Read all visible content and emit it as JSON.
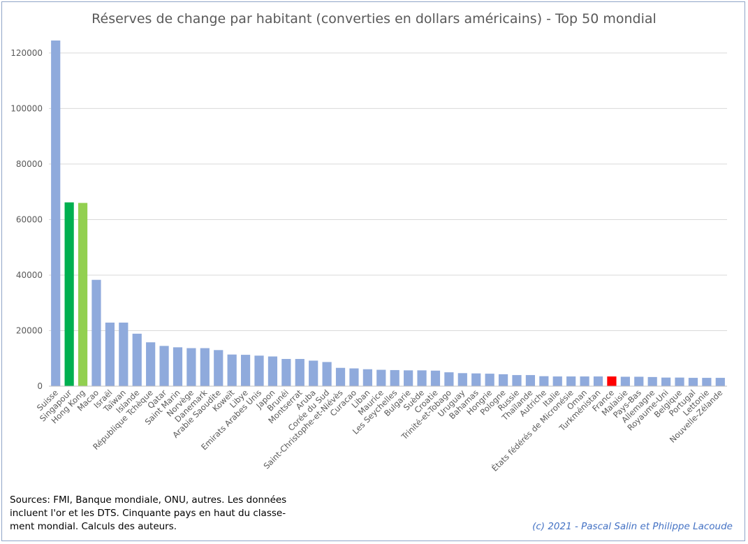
{
  "chart_data": {
    "type": "bar",
    "title": "Réserves de change par habitant (converties en dollars américains) - Top 50 mondial",
    "xlabel": "",
    "ylabel": "",
    "ylim": [
      0,
      125000
    ],
    "yticks": [
      0,
      20000,
      40000,
      60000,
      80000,
      100000,
      120000
    ],
    "grid": true,
    "legend": "none",
    "categories": [
      "Suisse",
      "Singapour",
      "Hong Kong",
      "Macao",
      "Israël",
      "Taïwan",
      "Islande",
      "République Tchèque",
      "Qatar",
      "Saint Marin",
      "Norvège",
      "Danemark",
      "Arabie Saoudite",
      "Koweït",
      "Libye",
      "Emirats Arabes Unis",
      "Japon",
      "Brunéi",
      "Montserrat",
      "Aruba",
      "Corée du Sud",
      "Saint-Christophe-et-Niévès",
      "Curacao",
      "Liban",
      "Maurice",
      "Les Seychelles",
      "Bulgarie",
      "Suède",
      "Croatie",
      "Trinité-et-Tobago",
      "Uruguay",
      "Bahamas",
      "Hongrie",
      "Pologne",
      "Russie",
      "Thaïlande",
      "Autriche",
      "Italie",
      "États fédérés de Micronésie",
      "Oman",
      "Turkménistan",
      "France",
      "Malaisie",
      "Pays-Bas",
      "Allemagne",
      "Royaume-Uni",
      "Belgique",
      "Portugal",
      "Lettonie",
      "Nouvelle-Zélande"
    ],
    "values": [
      124500,
      66200,
      66000,
      38300,
      22900,
      22900,
      18900,
      15800,
      14500,
      14000,
      13700,
      13700,
      13000,
      11400,
      11300,
      11000,
      10700,
      9800,
      9800,
      9200,
      8700,
      6600,
      6400,
      6100,
      5900,
      5800,
      5700,
      5700,
      5600,
      5000,
      4700,
      4600,
      4500,
      4300,
      4000,
      4000,
      3600,
      3500,
      3500,
      3500,
      3500,
      3500,
      3400,
      3400,
      3300,
      3100,
      3100,
      3000,
      3000,
      3000
    ],
    "colors": {
      "default": "#8faadc",
      "Singapour": "#00b050",
      "Hong Kong": "#92d050",
      "France": "#ff0000",
      "grid": "#d9d9d9",
      "axis": "#bfbfbf",
      "tick_label": "#595959"
    }
  },
  "notes": {
    "source": "Sources: FMI, Banque mondiale, ONU, autres. Les données incluent l'or et les DTS. Cinquante pays en haut du classe-ment mondial. Calculs des auteurs.",
    "credit": "(c) 2021 - Pascal Salin et Philippe Lacoude"
  }
}
